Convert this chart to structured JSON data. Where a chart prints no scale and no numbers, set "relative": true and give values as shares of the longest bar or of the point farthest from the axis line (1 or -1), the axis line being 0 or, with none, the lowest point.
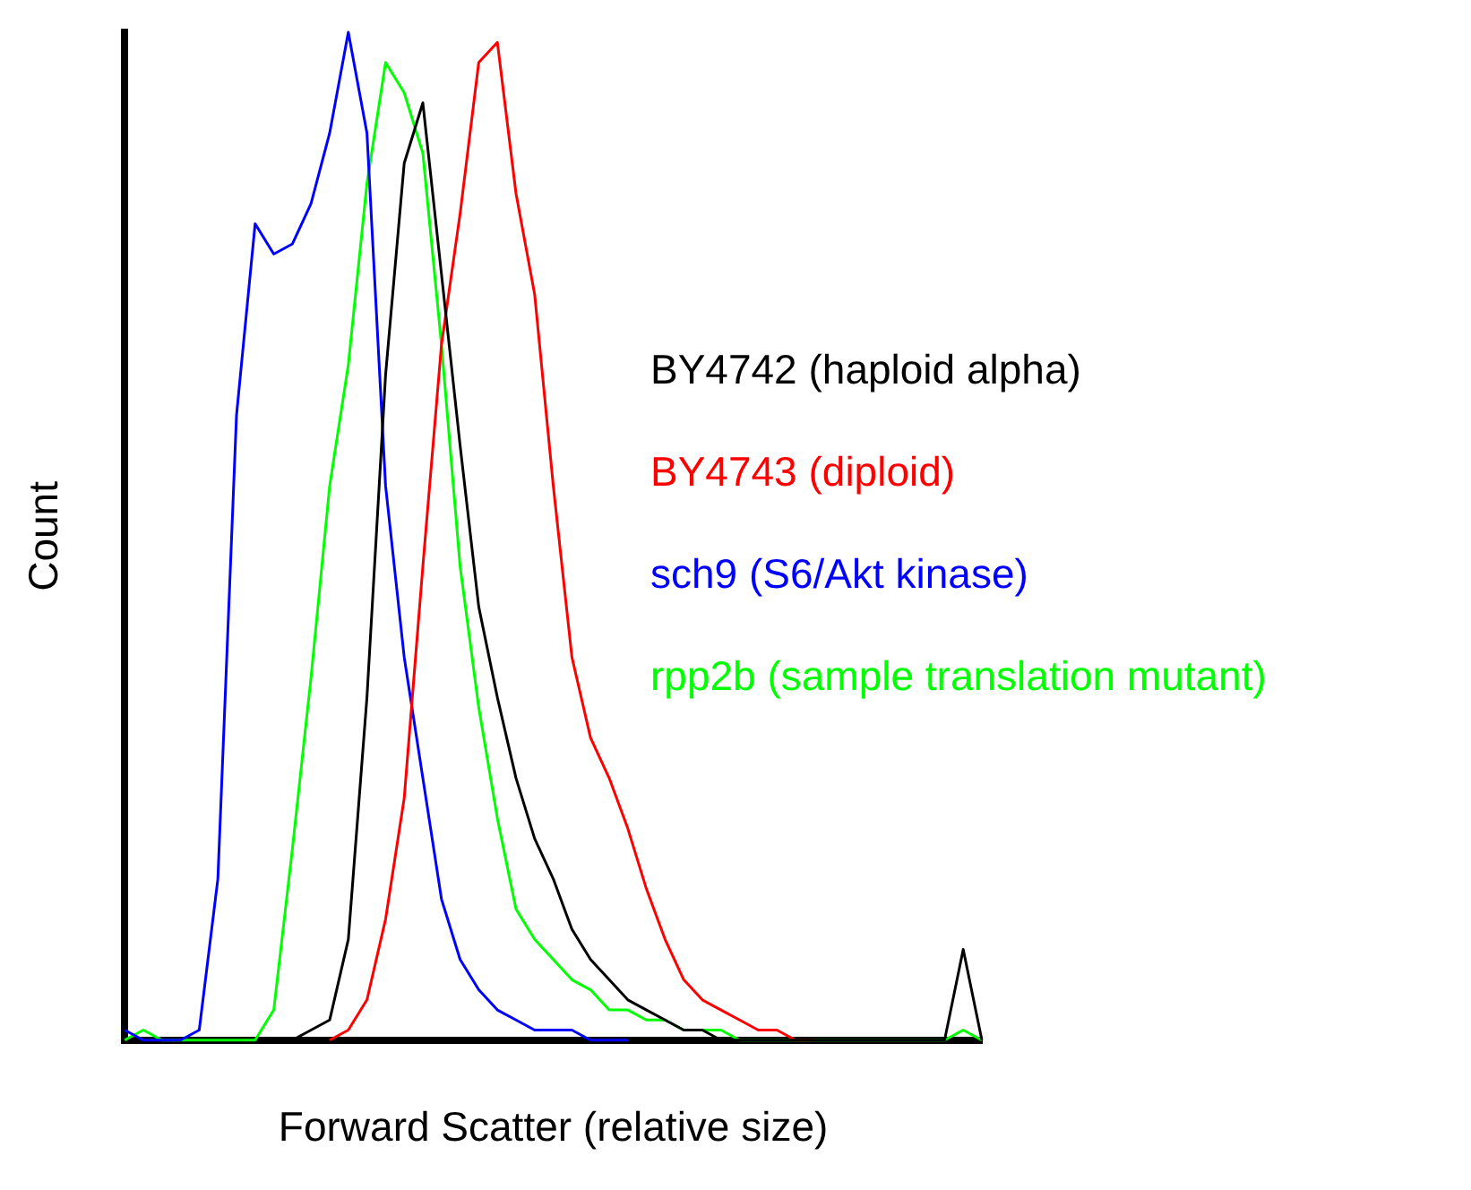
{
  "chart_data": {
    "type": "line",
    "relative": true,
    "xlabel": "Forward Scatter (relative size)",
    "ylabel": "Count",
    "legend": "right",
    "marker": "none",
    "line_style": "solid",
    "grid": false,
    "categories": [
      null,
      null,
      null,
      null,
      null,
      null,
      null,
      null,
      null,
      null,
      null,
      null,
      null,
      null,
      null,
      null,
      null,
      null,
      null,
      null,
      null,
      null,
      null,
      null,
      null,
      null,
      null,
      null,
      null,
      null,
      null,
      null,
      null,
      null,
      null,
      null,
      null,
      null,
      null,
      null,
      null,
      null,
      null,
      null,
      null,
      null,
      null
    ],
    "series": [
      {
        "name": "BY4742 (haploid alpha)",
        "color": "#000000",
        "values": [
          null,
          null,
          null,
          null,
          null,
          null,
          null,
          null,
          null,
          0,
          0.01,
          0.02,
          0.1,
          0.34,
          0.66,
          0.87,
          0.93,
          0.76,
          0.59,
          0.43,
          0.34,
          0.26,
          0.2,
          0.16,
          0.11,
          0.08,
          0.06,
          0.04,
          0.03,
          0.02,
          0.01,
          0.01,
          0,
          0,
          0,
          0,
          0,
          0,
          0,
          0,
          0,
          0,
          0,
          0,
          0,
          0.09,
          0
        ]
      },
      {
        "name": "BY4743 (diploid)",
        "color": "#ff0000",
        "values": [
          null,
          null,
          null,
          null,
          null,
          null,
          null,
          null,
          null,
          null,
          null,
          0,
          0.01,
          0.04,
          0.12,
          0.24,
          0.47,
          0.69,
          0.82,
          0.97,
          0.99,
          0.84,
          0.74,
          0.55,
          0.38,
          0.3,
          0.26,
          0.21,
          0.15,
          0.1,
          0.06,
          0.04,
          0.03,
          0.02,
          0.01,
          0.01,
          0,
          0,
          null,
          null,
          null,
          null,
          null,
          null,
          null,
          null,
          null
        ]
      },
      {
        "name": "sch9 (S6/Akt kinase)",
        "color": "#0000ff",
        "values": [
          0.01,
          0,
          0,
          0,
          0.01,
          0.16,
          0.62,
          0.81,
          0.78,
          0.79,
          0.83,
          0.9,
          1,
          0.9,
          0.55,
          0.38,
          0.26,
          0.14,
          0.08,
          0.05,
          0.03,
          0.02,
          0.01,
          0.01,
          0.01,
          0,
          0,
          0,
          null,
          null,
          null,
          null,
          null,
          null,
          null,
          null,
          null,
          null,
          null,
          null,
          null,
          null,
          null,
          null,
          null,
          null,
          null
        ]
      },
      {
        "name": "rpp2b (sample translation mutant)",
        "color": "#00ff00",
        "values": [
          0,
          0.01,
          0,
          0,
          0,
          0,
          0,
          0,
          0.03,
          0.19,
          0.36,
          0.55,
          0.67,
          0.85,
          0.97,
          0.94,
          0.88,
          0.69,
          0.47,
          0.33,
          0.22,
          0.13,
          0.1,
          0.08,
          0.06,
          0.05,
          0.03,
          0.03,
          0.02,
          0.02,
          0.01,
          0.01,
          0.01,
          0,
          0,
          0,
          0,
          0,
          0,
          0,
          0,
          0,
          0,
          0,
          0,
          0.01,
          0
        ]
      }
    ]
  }
}
